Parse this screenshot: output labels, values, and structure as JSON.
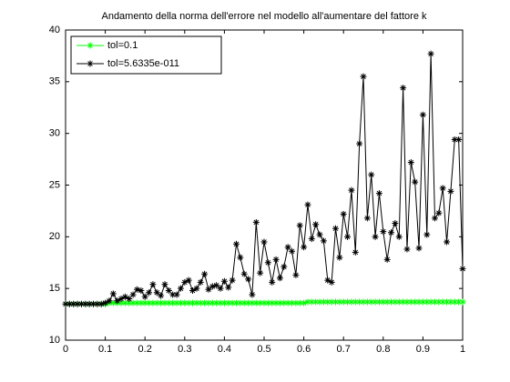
{
  "chart_data": {
    "type": "line",
    "title": "Andamento della norma dell'errore nel modello all'aumentare del fattore k",
    "x": [
      0,
      0.01,
      0.02,
      0.03,
      0.04,
      0.05,
      0.06,
      0.07,
      0.08,
      0.09,
      0.1,
      0.11,
      0.12,
      0.13,
      0.14,
      0.15,
      0.16,
      0.17,
      0.18,
      0.19,
      0.2,
      0.21,
      0.22,
      0.23,
      0.24,
      0.25,
      0.26,
      0.27,
      0.28,
      0.29,
      0.3,
      0.31,
      0.32,
      0.33,
      0.34,
      0.35,
      0.36,
      0.37,
      0.38,
      0.39,
      0.4,
      0.41,
      0.42,
      0.43,
      0.44,
      0.45,
      0.46,
      0.47,
      0.48,
      0.49,
      0.5,
      0.51,
      0.52,
      0.53,
      0.54,
      0.55,
      0.56,
      0.57,
      0.58,
      0.59,
      0.6,
      0.61,
      0.62,
      0.63,
      0.64,
      0.65,
      0.66,
      0.67,
      0.68,
      0.69,
      0.7,
      0.71,
      0.72,
      0.73,
      0.74,
      0.75,
      0.76,
      0.77,
      0.78,
      0.79,
      0.8,
      0.81,
      0.82,
      0.83,
      0.84,
      0.85,
      0.86,
      0.87,
      0.88,
      0.89,
      0.9,
      0.91,
      0.92,
      0.93,
      0.94,
      0.95,
      0.96,
      0.97,
      0.98,
      0.99,
      1
    ],
    "series": [
      {
        "name": "tol=0.1",
        "color": "#00ff00",
        "values": [
          13.5,
          13.5,
          13.5,
          13.5,
          13.5,
          13.5,
          13.5,
          13.5,
          13.5,
          13.5,
          13.5,
          13.6,
          13.6,
          13.6,
          13.6,
          13.6,
          13.6,
          13.6,
          13.6,
          13.6,
          13.6,
          13.6,
          13.6,
          13.6,
          13.6,
          13.6,
          13.6,
          13.6,
          13.6,
          13.6,
          13.6,
          13.6,
          13.6,
          13.6,
          13.6,
          13.6,
          13.6,
          13.6,
          13.6,
          13.6,
          13.6,
          13.6,
          13.6,
          13.6,
          13.6,
          13.6,
          13.6,
          13.6,
          13.6,
          13.6,
          13.6,
          13.6,
          13.6,
          13.6,
          13.6,
          13.6,
          13.6,
          13.6,
          13.6,
          13.6,
          13.6,
          13.7,
          13.7,
          13.7,
          13.7,
          13.7,
          13.7,
          13.7,
          13.7,
          13.7,
          13.7,
          13.7,
          13.7,
          13.7,
          13.7,
          13.7,
          13.7,
          13.7,
          13.7,
          13.7,
          13.7,
          13.7,
          13.7,
          13.7,
          13.7,
          13.7,
          13.7,
          13.7,
          13.7,
          13.7,
          13.7,
          13.7,
          13.7,
          13.7,
          13.7,
          13.7,
          13.7,
          13.7,
          13.7,
          13.7,
          13.7
        ]
      },
      {
        "name": "tol=5.6335e-011",
        "color": "#000000",
        "values": [
          13.5,
          13.5,
          13.5,
          13.5,
          13.5,
          13.5,
          13.5,
          13.5,
          13.5,
          13.5,
          13.6,
          13.8,
          14.5,
          13.8,
          14.0,
          14.2,
          14.0,
          14.4,
          14.9,
          14.8,
          14.2,
          14.6,
          15.4,
          14.6,
          14.3,
          15.4,
          14.8,
          14.4,
          14.4,
          15.0,
          15.6,
          15.8,
          14.8,
          15.0,
          15.6,
          16.4,
          14.9,
          15.2,
          15.3,
          15.0,
          15.7,
          15.1,
          15.8,
          19.3,
          18.0,
          16.4,
          15.9,
          14.4,
          21.4,
          16.5,
          19.5,
          17.5,
          15.6,
          17.8,
          16.0,
          17.1,
          19.0,
          18.6,
          16.3,
          21.1,
          19.0,
          23.1,
          19.8,
          21.2,
          20.2,
          19.6,
          15.8,
          15.6,
          20.8,
          18.0,
          22.2,
          20.0,
          24.5,
          18.5,
          29.0,
          35.5,
          21.8,
          26.0,
          20.0,
          24.2,
          20.5,
          17.8,
          20.4,
          21.3,
          20.0,
          34.4,
          18.8,
          27.2,
          25.3,
          18.9,
          31.8,
          20.2,
          37.7,
          21.8,
          22.3,
          24.7,
          19.5,
          24.4,
          29.4,
          29.4,
          16.9
        ]
      }
    ],
    "xlim": [
      0,
      1
    ],
    "xticks": [
      0,
      0.1,
      0.2,
      0.3,
      0.4,
      0.5,
      0.6,
      0.7,
      0.8,
      0.9,
      1
    ],
    "ylim": [
      10,
      40
    ],
    "yticks": [
      10,
      15,
      20,
      25,
      30,
      35,
      40
    ],
    "legend": "northwest"
  }
}
